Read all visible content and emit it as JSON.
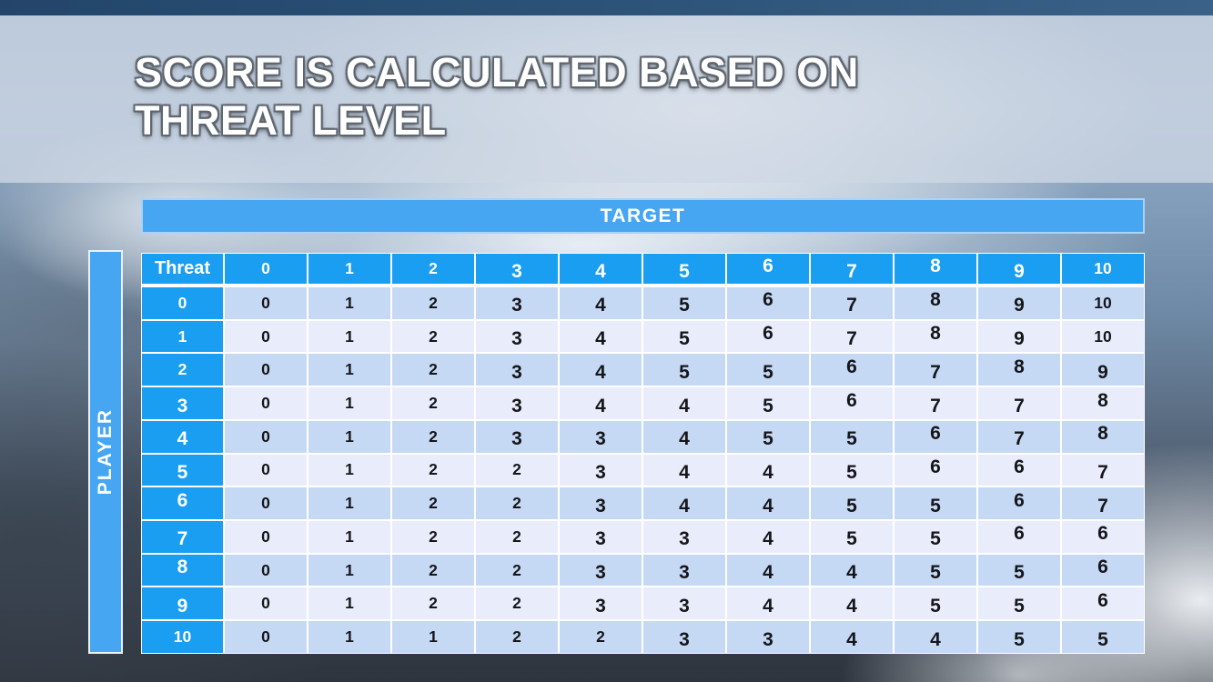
{
  "slide": {
    "title_line1": "SCORE IS CALCULATED BASED ON",
    "title_line2": "THREAT LEVEL"
  },
  "matrix": {
    "target_label": "TARGET",
    "player_label": "PLAYER",
    "corner_label": "Threat",
    "column_headers": [
      "0",
      "1",
      "2",
      "3",
      "4",
      "5",
      "6",
      "7",
      "8",
      "9",
      "10"
    ],
    "rows": [
      {
        "label": "0",
        "values": [
          "0",
          "1",
          "2",
          "3",
          "4",
          "5",
          "6",
          "7",
          "8",
          "9",
          "10"
        ]
      },
      {
        "label": "1",
        "values": [
          "0",
          "1",
          "2",
          "3",
          "4",
          "5",
          "6",
          "7",
          "8",
          "9",
          "10"
        ]
      },
      {
        "label": "2",
        "values": [
          "0",
          "1",
          "2",
          "3",
          "4",
          "5",
          "5",
          "6",
          "7",
          "8",
          "9"
        ]
      },
      {
        "label": "3",
        "values": [
          "0",
          "1",
          "2",
          "3",
          "4",
          "4",
          "5",
          "6",
          "7",
          "7",
          "8"
        ]
      },
      {
        "label": "4",
        "values": [
          "0",
          "1",
          "2",
          "3",
          "3",
          "4",
          "5",
          "5",
          "6",
          "7",
          "8"
        ]
      },
      {
        "label": "5",
        "values": [
          "0",
          "1",
          "2",
          "2",
          "3",
          "4",
          "4",
          "5",
          "6",
          "6",
          "7"
        ]
      },
      {
        "label": "6",
        "values": [
          "0",
          "1",
          "2",
          "2",
          "3",
          "4",
          "4",
          "5",
          "5",
          "6",
          "7"
        ]
      },
      {
        "label": "7",
        "values": [
          "0",
          "1",
          "2",
          "2",
          "3",
          "3",
          "4",
          "5",
          "5",
          "6",
          "6"
        ]
      },
      {
        "label": "8",
        "values": [
          "0",
          "1",
          "2",
          "2",
          "3",
          "3",
          "4",
          "4",
          "5",
          "5",
          "6"
        ]
      },
      {
        "label": "9",
        "values": [
          "0",
          "1",
          "2",
          "2",
          "3",
          "3",
          "4",
          "4",
          "5",
          "5",
          "6"
        ]
      },
      {
        "label": "10",
        "values": [
          "0",
          "1",
          "1",
          "2",
          "2",
          "3",
          "3",
          "4",
          "4",
          "5",
          "5"
        ]
      }
    ]
  },
  "chart_data": {
    "type": "table",
    "title": "Score is calculated based on threat level",
    "x_axis_label": "TARGET",
    "y_axis_label": "PLAYER",
    "corner_header": "Threat",
    "columns": [
      0,
      1,
      2,
      3,
      4,
      5,
      6,
      7,
      8,
      9,
      10
    ],
    "row_labels": [
      0,
      1,
      2,
      3,
      4,
      5,
      6,
      7,
      8,
      9,
      10
    ],
    "values": [
      [
        0,
        1,
        2,
        3,
        4,
        5,
        6,
        7,
        8,
        9,
        10
      ],
      [
        0,
        1,
        2,
        3,
        4,
        5,
        6,
        7,
        8,
        9,
        10
      ],
      [
        0,
        1,
        2,
        3,
        4,
        5,
        5,
        6,
        7,
        8,
        9
      ],
      [
        0,
        1,
        2,
        3,
        4,
        4,
        5,
        6,
        7,
        7,
        8
      ],
      [
        0,
        1,
        2,
        3,
        3,
        4,
        5,
        5,
        6,
        7,
        8
      ],
      [
        0,
        1,
        2,
        2,
        3,
        4,
        4,
        5,
        6,
        6,
        7
      ],
      [
        0,
        1,
        2,
        2,
        3,
        4,
        4,
        5,
        5,
        6,
        7
      ],
      [
        0,
        1,
        2,
        2,
        3,
        3,
        4,
        5,
        5,
        6,
        6
      ],
      [
        0,
        1,
        2,
        2,
        3,
        3,
        4,
        4,
        5,
        5,
        6
      ],
      [
        0,
        1,
        2,
        2,
        3,
        3,
        4,
        4,
        5,
        5,
        6
      ],
      [
        0,
        1,
        1,
        2,
        2,
        3,
        3,
        4,
        4,
        5,
        5
      ]
    ]
  },
  "colors": {
    "header_cell_blue": "#1a9ef2",
    "banner_bar_blue": "#47a6f2",
    "row_even_bg": "#c6d9f4",
    "row_odd_bg": "#e9edfb",
    "cell_text": "#15161a",
    "title_text": "#ffffff",
    "top_strip_blue": "#2d5479"
  }
}
